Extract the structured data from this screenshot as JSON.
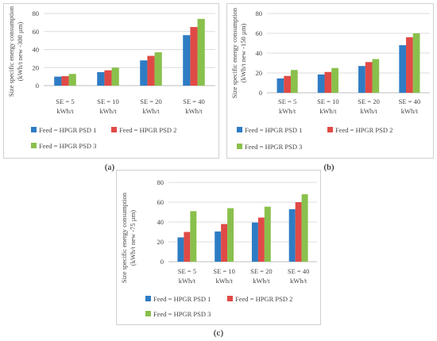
{
  "colors": {
    "series1": "#2e7cc4",
    "series2": "#e04a46",
    "series3": "#8ac04c",
    "grid": "#dcdcdc",
    "text": "#444444"
  },
  "captions": {
    "a": "(a)",
    "b": "(b)",
    "c": "(c)"
  },
  "chart_data": [
    {
      "id": "a",
      "type": "bar",
      "title": "",
      "categories": [
        [
          "SE = 5",
          "kWh/t"
        ],
        [
          "SE = 10",
          "kWh/t"
        ],
        [
          "SE = 20",
          "kWh/t"
        ],
        [
          "SE = 40",
          "kWh/t"
        ]
      ],
      "series": [
        {
          "name": "Feed = HPGR PSD 1",
          "values": [
            10,
            15,
            28,
            56
          ]
        },
        {
          "name": "Feed = HPGR PSD 2",
          "values": [
            10.5,
            17,
            33,
            65
          ]
        },
        {
          "name": "Feed = HPGR PSD 3",
          "values": [
            13,
            20,
            37,
            74
          ]
        }
      ],
      "ylabel": [
        "Size specific energy consumption",
        "(kWh/t new -300 µm)"
      ],
      "ylim": [
        0,
        80
      ],
      "yticks": [
        0,
        20,
        40,
        60,
        80
      ],
      "grid": true,
      "legend": "bottom"
    },
    {
      "id": "b",
      "type": "bar",
      "title": "",
      "categories": [
        [
          "SE = 5",
          "kWh/t"
        ],
        [
          "SE = 10",
          "kWh/t"
        ],
        [
          "SE = 20",
          "kWh/t"
        ],
        [
          "SE = 40",
          "kWh/t"
        ]
      ],
      "series": [
        {
          "name": "Feed = HPGR PSD 1",
          "values": [
            14.5,
            18.5,
            27,
            48
          ]
        },
        {
          "name": "Feed = HPGR PSD 2",
          "values": [
            17,
            21,
            31,
            56
          ]
        },
        {
          "name": "Feed = HPGR PSD 3",
          "values": [
            23,
            25,
            34,
            60
          ]
        }
      ],
      "ylabel": [
        "Size specific energy consumption",
        "(kWh/t new -150 µm)"
      ],
      "ylim": [
        0,
        80
      ],
      "yticks": [
        0,
        20,
        40,
        60,
        80
      ],
      "grid": true,
      "legend": "bottom"
    },
    {
      "id": "c",
      "type": "bar",
      "title": "",
      "categories": [
        [
          "SE = 5",
          "kWh/t"
        ],
        [
          "SE = 10",
          "kWh/t"
        ],
        [
          "SE = 20",
          "kWh/t"
        ],
        [
          "SE = 40",
          "kWh/t"
        ]
      ],
      "series": [
        {
          "name": "Feed = HPGR PSD 1",
          "values": [
            24.5,
            30.5,
            39.5,
            53
          ]
        },
        {
          "name": "Feed = HPGR PSD 2",
          "values": [
            30,
            38,
            44.5,
            60
          ]
        },
        {
          "name": "Feed = HPGR PSD 3",
          "values": [
            51,
            54,
            55.5,
            68
          ]
        }
      ],
      "ylabel": [
        "Size specific energy consumption",
        "(kWh/t new -75 µm)"
      ],
      "ylim": [
        0,
        80
      ],
      "yticks": [
        0,
        20,
        40,
        60,
        80
      ],
      "grid": true,
      "legend": "bottom"
    }
  ]
}
